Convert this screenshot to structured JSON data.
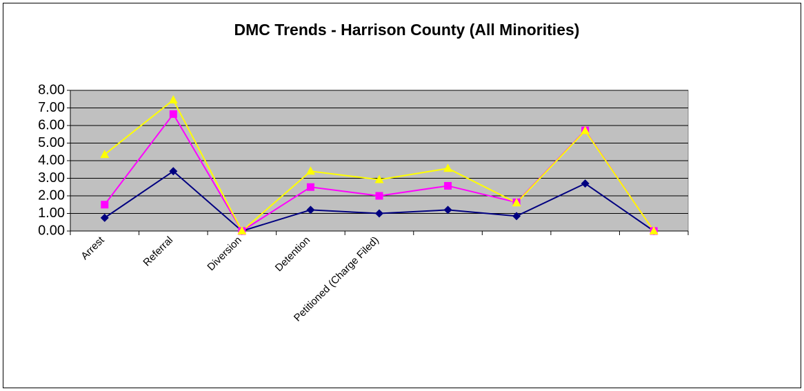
{
  "chart_data": {
    "type": "line",
    "title": "DMC Trends - Harrison County (All Minorities)",
    "categories": [
      "Arrest",
      "Referral",
      "Diversion",
      "Detention",
      "Petitioned (Charge Filed)",
      null,
      null,
      null,
      null
    ],
    "series": [
      {
        "color": "#000080",
        "marker": "diamond",
        "values": [
          0.75,
          3.4,
          0,
          1.2,
          1.0,
          1.2,
          0.85,
          2.7,
          0
        ]
      },
      {
        "color": "#ff00ff",
        "marker": "square",
        "values": [
          1.5,
          6.65,
          0,
          2.5,
          2.0,
          2.57,
          1.63,
          5.72,
          0
        ]
      },
      {
        "color": "#ffff00",
        "marker": "triangle",
        "values": [
          4.35,
          7.45,
          0,
          3.4,
          2.92,
          3.56,
          1.6,
          5.7,
          0
        ]
      }
    ],
    "ylim": [
      0,
      8
    ],
    "yticks": [
      {
        "value": 0,
        "label": "0.00"
      },
      {
        "value": 1,
        "label": "1.00"
      },
      {
        "value": 2,
        "label": "2.00"
      },
      {
        "value": 3,
        "label": "3.00"
      },
      {
        "value": 4,
        "label": "4.00"
      },
      {
        "value": 5,
        "label": "5.00"
      },
      {
        "value": 6,
        "label": "6.00"
      },
      {
        "value": 7,
        "label": "7.00"
      },
      {
        "value": 8,
        "label": "8.00"
      }
    ],
    "grid": true,
    "plot_background": "#c0c0c0"
  }
}
